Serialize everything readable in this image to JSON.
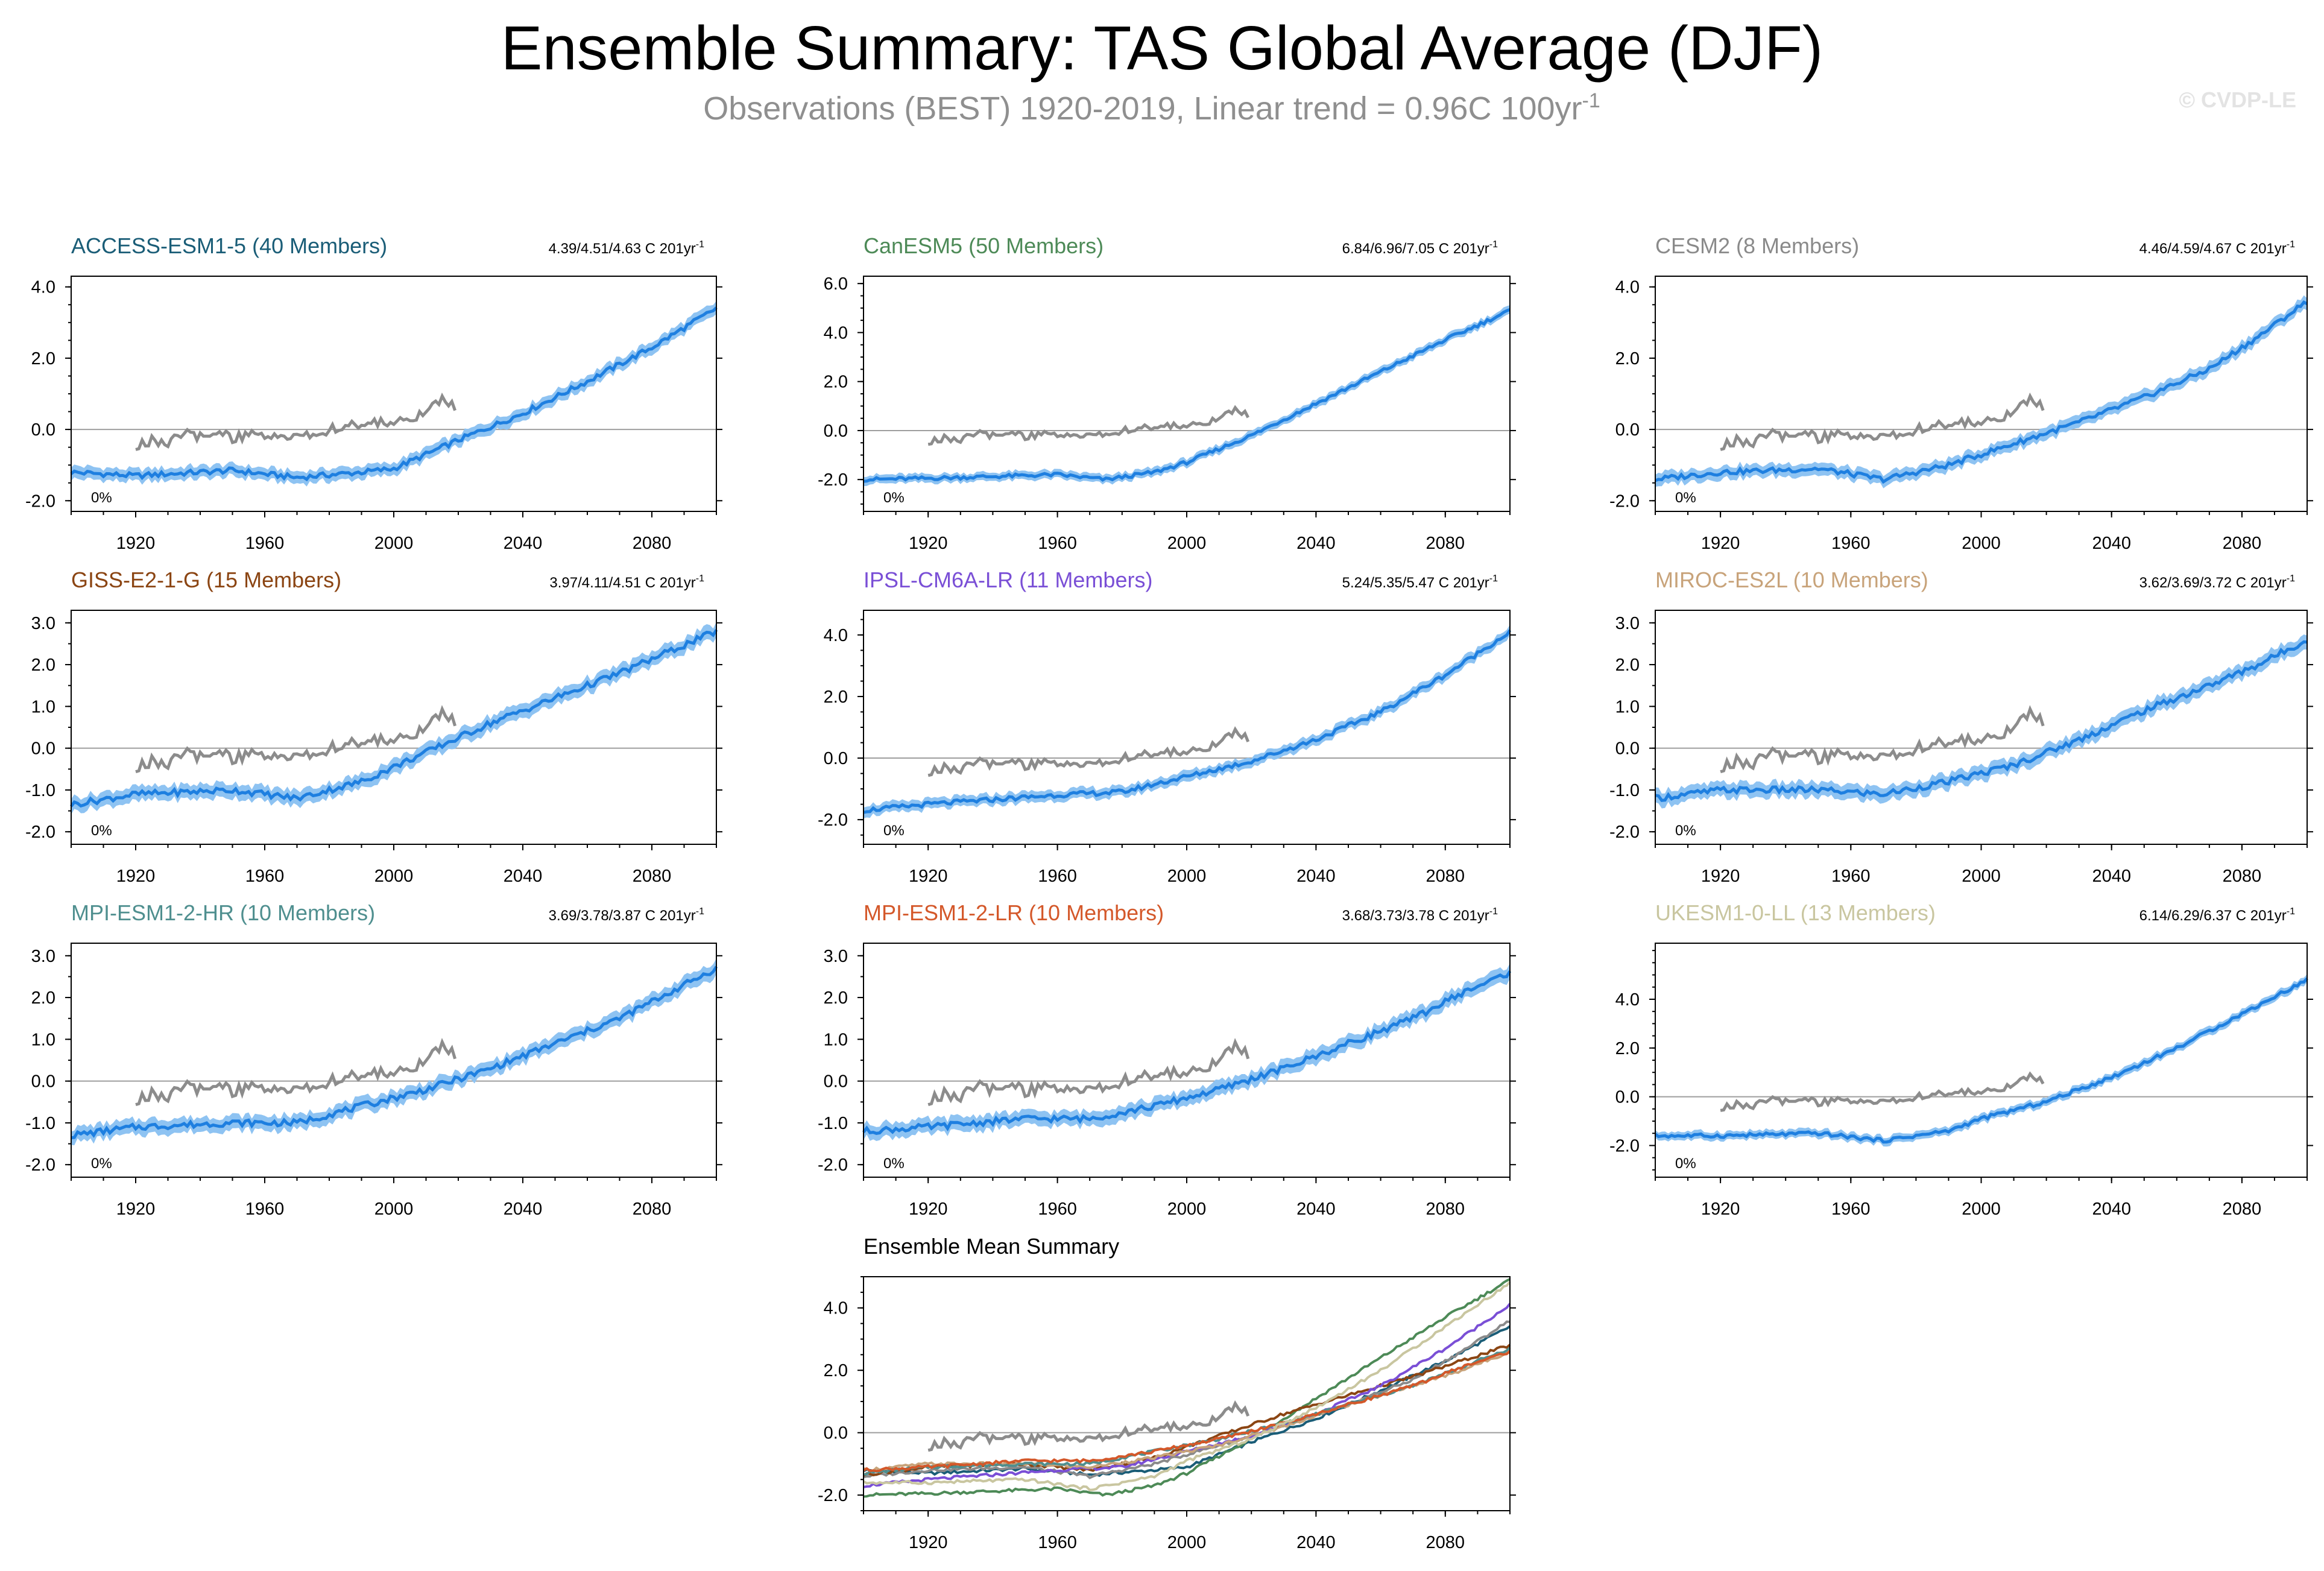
{
  "figure": {
    "title": "Ensemble Summary: TAS Global Average (DJF)",
    "subtitle": "Observations (BEST) 1920-2019, Linear trend = 0.96C 100yr",
    "subtitle_sup": "-1",
    "copyright": "© CVDP-LE",
    "obs_color": "#8c8c8c",
    "ensemble_color": "#1e7fe0",
    "spread_color": "#8ec3f2"
  },
  "chart_data": [
    {
      "type": "line",
      "name": "ACCESS-ESM1-5 (40 Members)",
      "color": "#1a5d77",
      "trend": "4.39/4.51/4.63 C 201yr",
      "trend_sup": "-1",
      "pct_label": "0%",
      "xlim": [
        1900,
        2100
      ],
      "ylim": [
        -2.3,
        4.3
      ],
      "yticks": [
        {
          "v": -2,
          "l": "-2.0"
        },
        {
          "v": 0,
          "l": "0.0"
        },
        {
          "v": 2,
          "l": "2.0"
        },
        {
          "v": 4,
          "l": "4.0"
        }
      ],
      "xticks": [
        {
          "v": 1920,
          "l": "1920"
        },
        {
          "v": 1960,
          "l": "1960"
        },
        {
          "v": 2000,
          "l": "2000"
        },
        {
          "v": 2040,
          "l": "2040"
        },
        {
          "v": 2080,
          "l": "2080"
        }
      ],
      "ensemble_mean": [
        [
          1900,
          -1.2
        ],
        [
          1920,
          -1.3
        ],
        [
          1950,
          -1.15
        ],
        [
          1970,
          -1.35
        ],
        [
          1990,
          -1.2
        ],
        [
          2000,
          -1.1
        ],
        [
          2020,
          -0.3
        ],
        [
          2040,
          0.45
        ],
        [
          2060,
          1.35
        ],
        [
          2080,
          2.3
        ],
        [
          2100,
          3.4
        ]
      ]
    },
    {
      "type": "line",
      "name": "CanESM5 (50 Members)",
      "color": "#4d8a57",
      "trend": "6.84/6.96/7.05 C 201yr",
      "trend_sup": "-1",
      "pct_label": "0%",
      "xlim": [
        1900,
        2100
      ],
      "ylim": [
        -3.3,
        6.3
      ],
      "yticks": [
        {
          "v": -2,
          "l": "-2.0"
        },
        {
          "v": 0,
          "l": "0.0"
        },
        {
          "v": 2,
          "l": "2.0"
        },
        {
          "v": 4,
          "l": "4.0"
        },
        {
          "v": 6,
          "l": "6.0"
        }
      ],
      "xticks": [
        {
          "v": 1920,
          "l": "1920"
        },
        {
          "v": 1960,
          "l": "1960"
        },
        {
          "v": 2000,
          "l": "2000"
        },
        {
          "v": 2040,
          "l": "2040"
        },
        {
          "v": 2080,
          "l": "2080"
        }
      ],
      "ensemble_mean": [
        [
          1900,
          -2.0
        ],
        [
          1920,
          -1.95
        ],
        [
          1960,
          -1.8
        ],
        [
          1975,
          -2.0
        ],
        [
          1990,
          -1.7
        ],
        [
          2000,
          -1.3
        ],
        [
          2020,
          -0.2
        ],
        [
          2040,
          1.1
        ],
        [
          2060,
          2.4
        ],
        [
          2080,
          3.7
        ],
        [
          2100,
          4.9
        ]
      ]
    },
    {
      "type": "line",
      "name": "CESM2 (8 Members)",
      "color": "#8a8a8a",
      "trend": "4.46/4.59/4.67 C 201yr",
      "trend_sup": "-1",
      "pct_label": "0%",
      "xlim": [
        1900,
        2100
      ],
      "ylim": [
        -2.3,
        4.3
      ],
      "yticks": [
        {
          "v": -2,
          "l": "-2.0"
        },
        {
          "v": 0,
          "l": "0.0"
        },
        {
          "v": 2,
          "l": "2.0"
        },
        {
          "v": 4,
          "l": "4.0"
        }
      ],
      "xticks": [
        {
          "v": 1920,
          "l": "1920"
        },
        {
          "v": 1960,
          "l": "1960"
        },
        {
          "v": 2000,
          "l": "2000"
        },
        {
          "v": 2040,
          "l": "2040"
        },
        {
          "v": 2080,
          "l": "2080"
        }
      ],
      "ensemble_mean": [
        [
          1900,
          -1.4
        ],
        [
          1920,
          -1.2
        ],
        [
          1950,
          -1.1
        ],
        [
          1970,
          -1.4
        ],
        [
          1990,
          -1.0
        ],
        [
          2010,
          -0.4
        ],
        [
          2030,
          0.2
        ],
        [
          2050,
          0.9
        ],
        [
          2070,
          1.7
        ],
        [
          2085,
          2.6
        ],
        [
          2100,
          3.6
        ]
      ]
    },
    {
      "type": "line",
      "name": "GISS-E2-1-G (15 Members)",
      "color": "#8b4513",
      "trend": "3.97/4.11/4.51 C 201yr",
      "trend_sup": "-1",
      "pct_label": "0%",
      "xlim": [
        1900,
        2100
      ],
      "ylim": [
        -2.3,
        3.3
      ],
      "yticks": [
        {
          "v": -2,
          "l": "-2.0"
        },
        {
          "v": -1,
          "l": "-1.0"
        },
        {
          "v": 0,
          "l": "0.0"
        },
        {
          "v": 1,
          "l": "1.0"
        },
        {
          "v": 2,
          "l": "2.0"
        },
        {
          "v": 3,
          "l": "3.0"
        }
      ],
      "xticks": [
        {
          "v": 1920,
          "l": "1920"
        },
        {
          "v": 1960,
          "l": "1960"
        },
        {
          "v": 2000,
          "l": "2000"
        },
        {
          "v": 2040,
          "l": "2040"
        },
        {
          "v": 2080,
          "l": "2080"
        }
      ],
      "ensemble_mean": [
        [
          1900,
          -1.35
        ],
        [
          1920,
          -1.1
        ],
        [
          1950,
          -1.0
        ],
        [
          1970,
          -1.2
        ],
        [
          1990,
          -0.8
        ],
        [
          2010,
          -0.1
        ],
        [
          2030,
          0.6
        ],
        [
          2050,
          1.2
        ],
        [
          2070,
          1.8
        ],
        [
          2085,
          2.3
        ],
        [
          2100,
          2.8
        ]
      ]
    },
    {
      "type": "line",
      "name": "IPSL-CM6A-LR (11 Members)",
      "color": "#7a4fd6",
      "trend": "5.24/5.35/5.47 C 201yr",
      "trend_sup": "-1",
      "pct_label": "0%",
      "xlim": [
        1900,
        2100
      ],
      "ylim": [
        -2.8,
        4.8
      ],
      "yticks": [
        {
          "v": -2,
          "l": "-2.0"
        },
        {
          "v": 0,
          "l": "0.0"
        },
        {
          "v": 2,
          "l": "2.0"
        },
        {
          "v": 4,
          "l": "4.0"
        }
      ],
      "xticks": [
        {
          "v": 1920,
          "l": "1920"
        },
        {
          "v": 1960,
          "l": "1960"
        },
        {
          "v": 2000,
          "l": "2000"
        },
        {
          "v": 2040,
          "l": "2040"
        },
        {
          "v": 2080,
          "l": "2080"
        }
      ],
      "ensemble_mean": [
        [
          1900,
          -1.7
        ],
        [
          1920,
          -1.5
        ],
        [
          1960,
          -1.2
        ],
        [
          1980,
          -1.1
        ],
        [
          2000,
          -0.6
        ],
        [
          2020,
          -0.1
        ],
        [
          2040,
          0.6
        ],
        [
          2060,
          1.5
        ],
        [
          2080,
          2.7
        ],
        [
          2100,
          4.1
        ]
      ]
    },
    {
      "type": "line",
      "name": "MIROC-ES2L (10 Members)",
      "color": "#c8a37a",
      "trend": "3.62/3.69/3.72 C 201yr",
      "trend_sup": "-1",
      "pct_label": "0%",
      "xlim": [
        1900,
        2100
      ],
      "ylim": [
        -2.3,
        3.3
      ],
      "yticks": [
        {
          "v": -2,
          "l": "-2.0"
        },
        {
          "v": -1,
          "l": "-1.0"
        },
        {
          "v": 0,
          "l": "0.0"
        },
        {
          "v": 1,
          "l": "1.0"
        },
        {
          "v": 2,
          "l": "2.0"
        },
        {
          "v": 3,
          "l": "3.0"
        }
      ],
      "xticks": [
        {
          "v": 1920,
          "l": "1920"
        },
        {
          "v": 1960,
          "l": "1960"
        },
        {
          "v": 2000,
          "l": "2000"
        },
        {
          "v": 2040,
          "l": "2040"
        },
        {
          "v": 2080,
          "l": "2080"
        }
      ],
      "ensemble_mean": [
        [
          1900,
          -1.2
        ],
        [
          1920,
          -1.0
        ],
        [
          1950,
          -1.0
        ],
        [
          1970,
          -1.1
        ],
        [
          1990,
          -0.8
        ],
        [
          2010,
          -0.4
        ],
        [
          2030,
          0.2
        ],
        [
          2050,
          0.9
        ],
        [
          2070,
          1.5
        ],
        [
          2085,
          2.0
        ],
        [
          2100,
          2.6
        ]
      ]
    },
    {
      "type": "line",
      "name": "MPI-ESM1-2-HR (10 Members)",
      "color": "#4f8f8f",
      "trend": "3.69/3.78/3.87 C 201yr",
      "trend_sup": "-1",
      "pct_label": "0%",
      "xlim": [
        1900,
        2100
      ],
      "ylim": [
        -2.3,
        3.3
      ],
      "yticks": [
        {
          "v": -2,
          "l": "-2.0"
        },
        {
          "v": -1,
          "l": "-1.0"
        },
        {
          "v": 0,
          "l": "0.0"
        },
        {
          "v": 1,
          "l": "1.0"
        },
        {
          "v": 2,
          "l": "2.0"
        },
        {
          "v": 3,
          "l": "3.0"
        }
      ],
      "xticks": [
        {
          "v": 1920,
          "l": "1920"
        },
        {
          "v": 1960,
          "l": "1960"
        },
        {
          "v": 2000,
          "l": "2000"
        },
        {
          "v": 2040,
          "l": "2040"
        },
        {
          "v": 2080,
          "l": "2080"
        }
      ],
      "ensemble_mean": [
        [
          1900,
          -1.3
        ],
        [
          1920,
          -1.1
        ],
        [
          1950,
          -1.0
        ],
        [
          1970,
          -1.0
        ],
        [
          1990,
          -0.6
        ],
        [
          2010,
          -0.2
        ],
        [
          2030,
          0.3
        ],
        [
          2050,
          0.9
        ],
        [
          2070,
          1.5
        ],
        [
          2085,
          2.1
        ],
        [
          2100,
          2.7
        ]
      ]
    },
    {
      "type": "line",
      "name": "MPI-ESM1-2-LR (10 Members)",
      "color": "#d4582a",
      "trend": "3.68/3.73/3.78 C 201yr",
      "trend_sup": "-1",
      "pct_label": "0%",
      "xlim": [
        1900,
        2100
      ],
      "ylim": [
        -2.3,
        3.3
      ],
      "yticks": [
        {
          "v": -2,
          "l": "-2.0"
        },
        {
          "v": -1,
          "l": "-1.0"
        },
        {
          "v": 0,
          "l": "0.0"
        },
        {
          "v": 1,
          "l": "1.0"
        },
        {
          "v": 2,
          "l": "2.0"
        },
        {
          "v": 3,
          "l": "3.0"
        }
      ],
      "xticks": [
        {
          "v": 1920,
          "l": "1920"
        },
        {
          "v": 1960,
          "l": "1960"
        },
        {
          "v": 2000,
          "l": "2000"
        },
        {
          "v": 2040,
          "l": "2040"
        },
        {
          "v": 2080,
          "l": "2080"
        }
      ],
      "ensemble_mean": [
        [
          1900,
          -1.2
        ],
        [
          1920,
          -1.1
        ],
        [
          1950,
          -0.9
        ],
        [
          1970,
          -0.9
        ],
        [
          1990,
          -0.6
        ],
        [
          2010,
          -0.2
        ],
        [
          2030,
          0.3
        ],
        [
          2050,
          0.9
        ],
        [
          2070,
          1.5
        ],
        [
          2085,
          2.1
        ],
        [
          2100,
          2.6
        ]
      ]
    },
    {
      "type": "line",
      "name": "UKESM1-0-LL (13 Members)",
      "color": "#c9c6a0",
      "trend": "6.14/6.29/6.37 C 201yr",
      "trend_sup": "-1",
      "pct_label": "0%",
      "xlim": [
        1900,
        2100
      ],
      "ylim": [
        -3.3,
        6.3
      ],
      "yticks": [
        {
          "v": -2,
          "l": "-2.0"
        },
        {
          "v": 0,
          "l": "0.0"
        },
        {
          "v": 2,
          "l": "2.0"
        },
        {
          "v": 4,
          "l": "4.0"
        }
      ],
      "xticks": [
        {
          "v": 1920,
          "l": "1920"
        },
        {
          "v": 1960,
          "l": "1960"
        },
        {
          "v": 2000,
          "l": "2000"
        },
        {
          "v": 2040,
          "l": "2040"
        },
        {
          "v": 2080,
          "l": "2080"
        }
      ],
      "ensemble_mean": [
        [
          1900,
          -1.6
        ],
        [
          1920,
          -1.6
        ],
        [
          1950,
          -1.5
        ],
        [
          1970,
          -1.8
        ],
        [
          1990,
          -1.4
        ],
        [
          2000,
          -0.9
        ],
        [
          2020,
          -0.2
        ],
        [
          2040,
          0.8
        ],
        [
          2060,
          2.0
        ],
        [
          2080,
          3.4
        ],
        [
          2100,
          4.8
        ]
      ]
    },
    {
      "type": "line",
      "name": "Ensemble Mean Summary",
      "color": "#000000",
      "trend": "",
      "trend_sup": "",
      "pct_label": "",
      "xlim": [
        1900,
        2100
      ],
      "ylim": [
        -2.5,
        5.0
      ],
      "yticks": [
        {
          "v": -2,
          "l": "-2.0"
        },
        {
          "v": 0,
          "l": "0.0"
        },
        {
          "v": 2,
          "l": "2.0"
        },
        {
          "v": 4,
          "l": "4.0"
        }
      ],
      "xticks": [
        {
          "v": 1920,
          "l": "1920"
        },
        {
          "v": 1960,
          "l": "1960"
        },
        {
          "v": 2000,
          "l": "2000"
        },
        {
          "v": 2040,
          "l": "2040"
        },
        {
          "v": 2080,
          "l": "2080"
        }
      ],
      "summary": true
    }
  ],
  "observations": {
    "name": "Observations (BEST)",
    "points": [
      [
        1920,
        -0.5
      ],
      [
        1925,
        -0.3
      ],
      [
        1930,
        -0.4
      ],
      [
        1935,
        -0.1
      ],
      [
        1940,
        -0.2
      ],
      [
        1945,
        0.0
      ],
      [
        1950,
        -0.3
      ],
      [
        1955,
        -0.1
      ],
      [
        1960,
        -0.2
      ],
      [
        1965,
        -0.1
      ],
      [
        1970,
        -0.2
      ],
      [
        1975,
        -0.1
      ],
      [
        1980,
        0.0
      ],
      [
        1985,
        0.1
      ],
      [
        1990,
        0.1
      ],
      [
        1995,
        0.2
      ],
      [
        2000,
        0.2
      ],
      [
        2005,
        0.3
      ],
      [
        2010,
        0.5
      ],
      [
        2015,
        0.8
      ],
      [
        2019,
        0.6
      ]
    ]
  }
}
